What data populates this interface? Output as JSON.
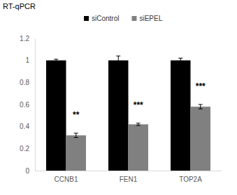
{
  "chart_data": {
    "type": "bar",
    "title": "RT-qPCR",
    "categories": [
      "CCNB1",
      "FEN1",
      "TOP2A"
    ],
    "series": [
      {
        "name": "siControl",
        "color": "#000000",
        "values": [
          1,
          1,
          1
        ],
        "errors": [
          0.01,
          0.04,
          0.02
        ]
      },
      {
        "name": "siEPEL",
        "color": "#808080",
        "values": [
          0.32,
          0.42,
          0.58
        ],
        "errors": [
          0.02,
          0.01,
          0.02
        ],
        "annotations": [
          "**",
          "***",
          "***"
        ]
      }
    ],
    "ylim": [
      0,
      1.2
    ],
    "yticks": [
      0,
      0.2,
      0.4,
      0.6,
      0.8,
      1,
      1.2
    ],
    "grid": false,
    "legend": "top"
  }
}
